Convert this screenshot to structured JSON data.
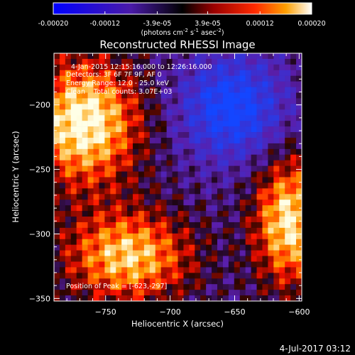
{
  "colorbar": {
    "ticks": [
      "-0.00020",
      "-0.00012",
      "-3.9e-05",
      "3.9e-05",
      "0.00012",
      "0.00020"
    ],
    "tick_values": [
      -0.0002,
      -0.00012,
      -3.9e-05,
      3.9e-05,
      0.00012,
      0.0002
    ],
    "range": [
      -0.0002,
      0.0002
    ],
    "units_main": "(photons cm",
    "units_exp1": "-2",
    "units_mid": " s",
    "units_exp2": "-1",
    "units_mid2": " asec",
    "units_exp3": "-2",
    "units_end": ")"
  },
  "colors": {
    "background": "#000000",
    "negative": "#2020ff",
    "zero": "#000000",
    "positive_mid": "#ff2a00",
    "positive_high": "#ffffff"
  },
  "chart_data": {
    "type": "heatmap",
    "title": "Reconstructed RHESSI Image",
    "xlabel": "Heliocentric X (arcsec)",
    "ylabel": "Heliocentric Y (arcsec)",
    "xlim": [
      -790,
      -598
    ],
    "ylim": [
      -352,
      -160
    ],
    "xticks": [
      -750,
      -700,
      -650,
      -600
    ],
    "xtick_labels": [
      "−750",
      "−700",
      "−650",
      "−600"
    ],
    "yticks": [
      -200,
      -250,
      -300,
      -350
    ],
    "ytick_labels": [
      "−200",
      "−250",
      "−300",
      "−350"
    ],
    "grid": false,
    "annotations": [
      "4-Jan-2015 12:15:16.000 to 12:26:16.000",
      "Detectors: 3F 6F 7F 9F, AF 0",
      "Energy Range: 12.0 - 25.0 keV",
      "Clean    Total counts: 3.07E+03"
    ],
    "peak_label": "Position of Peak = [-623,-297]",
    "peak": [
      -623,
      -297
    ]
  },
  "footer": {
    "timestamp": "4-Jul-2017 03:12"
  }
}
